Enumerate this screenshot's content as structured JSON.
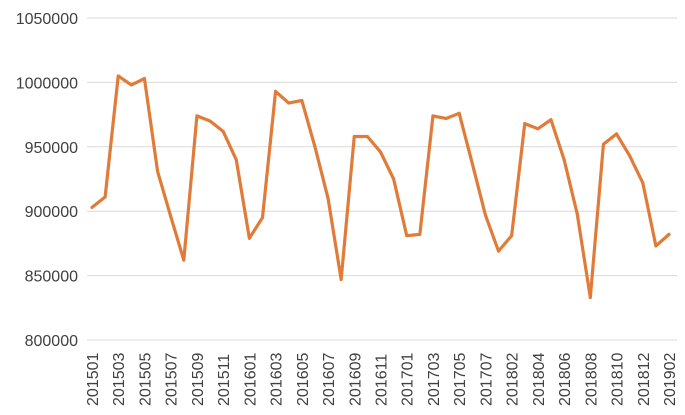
{
  "chart_data": {
    "type": "line",
    "title": "",
    "xlabel": "",
    "ylabel": "",
    "ylim": [
      800000,
      1050000
    ],
    "yticks": [
      800000,
      850000,
      900000,
      950000,
      1000000,
      1050000
    ],
    "ytick_labels": [
      "800000",
      "850000",
      "900000",
      "950000",
      "1000000",
      "1050000"
    ],
    "xtick_labels": [
      "201501",
      "201503",
      "201505",
      "201507",
      "201509",
      "201511",
      "201601",
      "201603",
      "201605",
      "201607",
      "201609",
      "201611",
      "201701",
      "201703",
      "201705",
      "201707",
      "201802",
      "201804",
      "201806",
      "201808",
      "201810",
      "201812",
      "201902"
    ],
    "grid": true,
    "legend": "none",
    "series_color": "#e07b39",
    "series": [
      {
        "values": [
          903000,
          911000,
          1005000,
          998000,
          1003000,
          931000,
          896000,
          862000,
          974000,
          970000,
          962000,
          940000,
          879000,
          895000,
          993000,
          984000,
          986000,
          950000,
          910000,
          847000,
          958000,
          958000,
          946000,
          925000,
          881000,
          882000,
          974000,
          972000,
          976000,
          937000,
          897000,
          869000,
          881000,
          968000,
          964000,
          971000,
          940000,
          898000,
          833000,
          952000,
          960000,
          943000,
          922000,
          873000,
          882000
        ]
      }
    ]
  }
}
